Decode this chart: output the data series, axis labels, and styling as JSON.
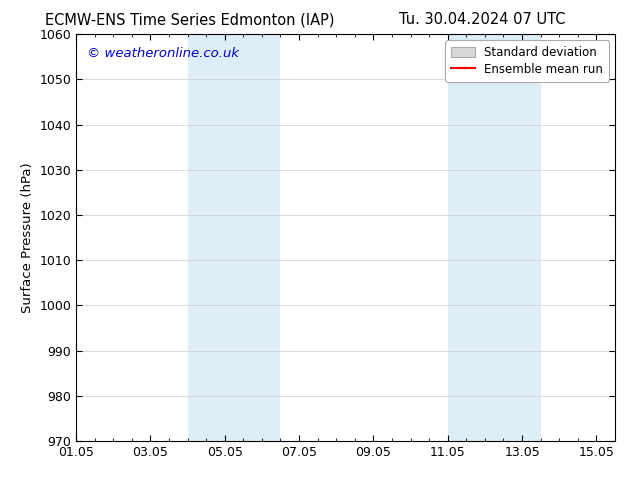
{
  "title_left": "ECMW-ENS Time Series Edmonton (IAP)",
  "title_right": "Tu. 30.04.2024 07 UTC",
  "ylabel": "Surface Pressure (hPa)",
  "ylim": [
    970,
    1060
  ],
  "yticks": [
    970,
    980,
    990,
    1000,
    1010,
    1020,
    1030,
    1040,
    1050,
    1060
  ],
  "x_start_days": 0,
  "x_end_days": 14,
  "xtick_labels": [
    "01.05",
    "03.05",
    "05.05",
    "07.05",
    "09.05",
    "11.05",
    "13.05",
    "15.05"
  ],
  "xtick_positions_days": [
    0,
    2,
    4,
    6,
    8,
    10,
    12,
    14
  ],
  "shaded_bands": [
    {
      "x_start_days": 3.0,
      "x_end_days": 5.5
    },
    {
      "x_start_days": 10.0,
      "x_end_days": 12.5
    }
  ],
  "shade_color": "#ddeef8",
  "watermark_text": "© weatheronline.co.uk",
  "watermark_color": "#0000cc",
  "legend_std_color": "#d8d8d8",
  "legend_std_edge": "#aaaaaa",
  "legend_mean_color": "#ff0000",
  "background_color": "#ffffff",
  "plot_bg_color": "#ffffff",
  "title_fontsize": 10.5,
  "axis_label_fontsize": 9.5,
  "tick_fontsize": 9,
  "watermark_fontsize": 9.5,
  "legend_fontsize": 8.5,
  "grid_color": "#cccccc",
  "grid_linewidth": 0.5,
  "spine_color": "#000000",
  "spine_linewidth": 0.8
}
